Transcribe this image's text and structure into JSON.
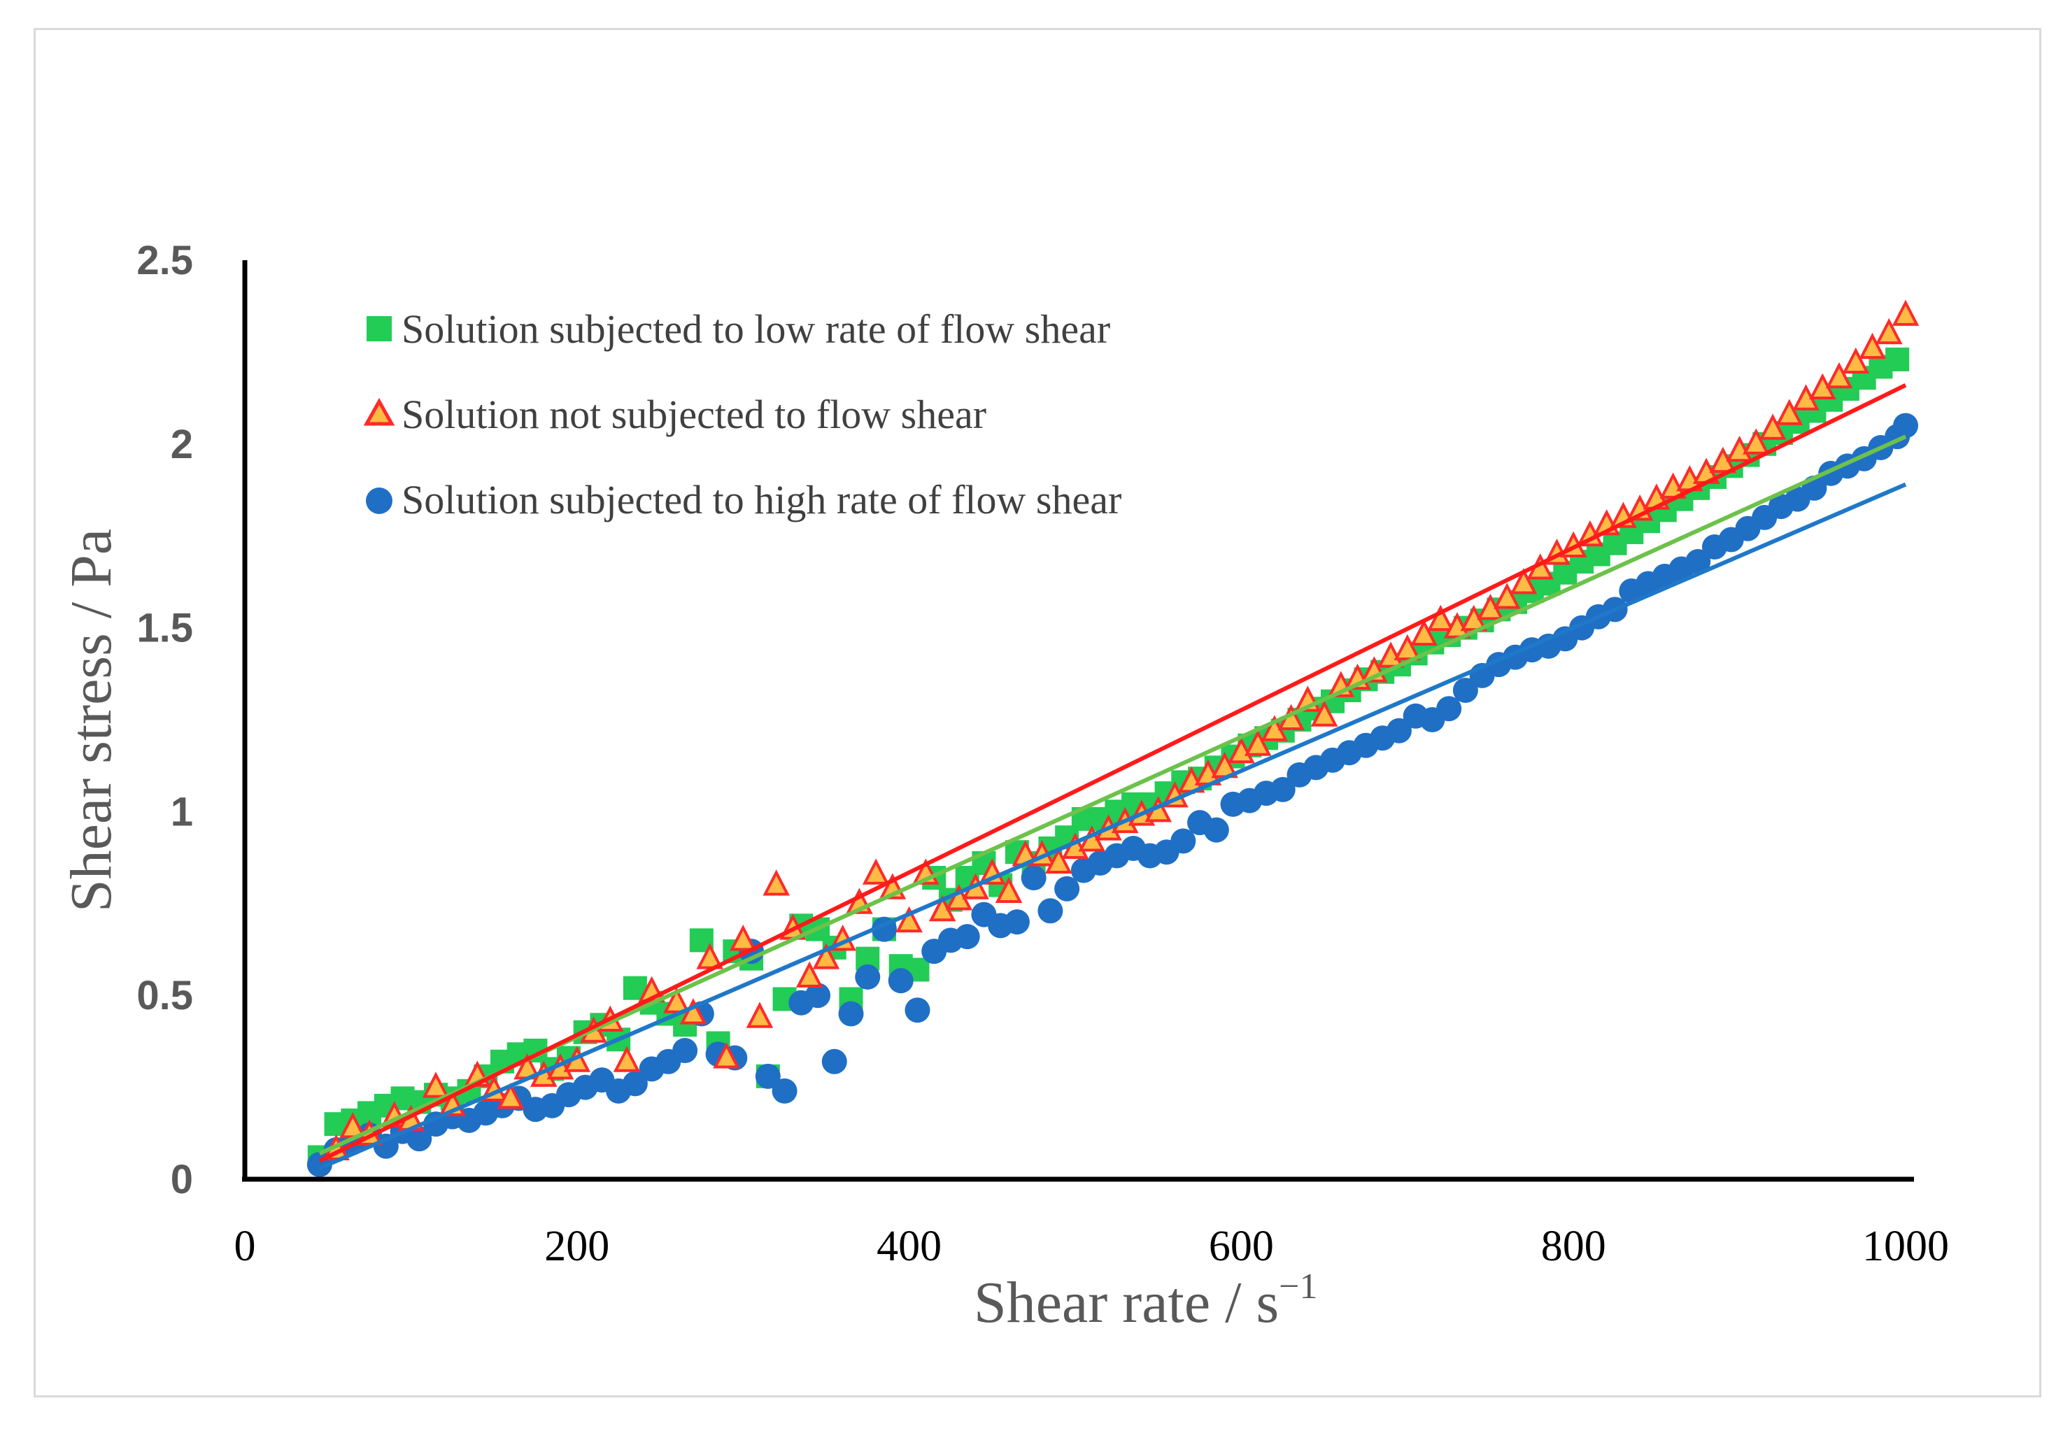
{
  "chart_data": {
    "type": "scatter",
    "title": "",
    "xlabel": "Shear rate / s",
    "xlabel_superscript": "−1",
    "ylabel": "Shear stress / Pa",
    "xlim": [
      0,
      1000
    ],
    "ylim": [
      0,
      2.5
    ],
    "x_ticks": [
      "0",
      "200",
      "400",
      "600",
      "800",
      "1000"
    ],
    "y_ticks": [
      "0",
      "0.5",
      "1",
      "1.5",
      "2",
      "2.5"
    ],
    "grid": false,
    "legend_position": "top-left",
    "series": [
      {
        "name": "Solution subjected to low rate of flow shear",
        "marker": "square",
        "color": "#22cc55",
        "x": [
          45,
          55,
          65,
          75,
          85,
          95,
          105,
          115,
          125,
          135,
          145,
          155,
          165,
          175,
          185,
          195,
          205,
          215,
          225,
          235,
          245,
          255,
          265,
          275,
          285,
          295,
          305,
          315,
          325,
          335,
          345,
          355,
          365,
          375,
          385,
          395,
          405,
          415,
          425,
          435,
          445,
          455,
          465,
          475,
          485,
          495,
          505,
          515,
          525,
          535,
          545,
          555,
          565,
          575,
          585,
          595,
          605,
          615,
          625,
          635,
          645,
          655,
          665,
          675,
          685,
          695,
          705,
          715,
          725,
          735,
          745,
          755,
          765,
          775,
          785,
          795,
          805,
          815,
          825,
          835,
          845,
          855,
          865,
          875,
          885,
          895,
          905,
          915,
          925,
          935,
          945,
          955,
          965,
          975,
          985,
          995
        ],
        "y": [
          0.06,
          0.15,
          0.16,
          0.18,
          0.2,
          0.22,
          0.21,
          0.23,
          0.22,
          0.24,
          0.28,
          0.32,
          0.34,
          0.35,
          0.3,
          0.33,
          0.4,
          0.42,
          0.38,
          0.52,
          0.48,
          0.45,
          0.42,
          0.65,
          0.37,
          0.62,
          0.6,
          0.28,
          0.49,
          0.69,
          0.68,
          0.63,
          0.49,
          0.6,
          0.68,
          0.58,
          0.57,
          0.82,
          0.76,
          0.82,
          0.86,
          0.8,
          0.89,
          0.86,
          0.9,
          0.93,
          0.98,
          0.98,
          1.0,
          1.02,
          1.02,
          1.05,
          1.08,
          1.09,
          1.12,
          1.15,
          1.18,
          1.2,
          1.22,
          1.25,
          1.28,
          1.3,
          1.33,
          1.36,
          1.38,
          1.4,
          1.43,
          1.46,
          1.48,
          1.5,
          1.52,
          1.55,
          1.57,
          1.6,
          1.62,
          1.65,
          1.68,
          1.7,
          1.73,
          1.76,
          1.79,
          1.82,
          1.85,
          1.88,
          1.91,
          1.94,
          1.97,
          2.0,
          2.03,
          2.06,
          2.09,
          2.12,
          2.15,
          2.18,
          2.21,
          2.23
        ],
        "trendline": {
          "x": [
            45,
            1000
          ],
          "y": [
            0.07,
            2.02
          ]
        }
      },
      {
        "name": "Solution not subjected to flow shear",
        "marker": "triangle",
        "color": "#ff2a2a",
        "fill": "#ffbb44",
        "x": [
          55,
          65,
          75,
          90,
          100,
          115,
          125,
          140,
          150,
          160,
          170,
          180,
          190,
          200,
          210,
          220,
          230,
          245,
          260,
          270,
          280,
          290,
          300,
          310,
          320,
          330,
          340,
          350,
          360,
          370,
          380,
          390,
          400,
          410,
          420,
          430,
          440,
          450,
          460,
          470,
          480,
          490,
          500,
          510,
          520,
          530,
          540,
          550,
          560,
          570,
          580,
          590,
          600,
          610,
          620,
          630,
          640,
          650,
          660,
          670,
          680,
          690,
          700,
          710,
          720,
          730,
          740,
          750,
          760,
          770,
          780,
          790,
          800,
          810,
          820,
          830,
          840,
          850,
          860,
          870,
          880,
          890,
          900,
          910,
          920,
          930,
          940,
          950,
          960,
          970,
          980,
          990,
          1000
        ],
        "y": [
          0.08,
          0.14,
          0.12,
          0.17,
          0.16,
          0.25,
          0.2,
          0.28,
          0.24,
          0.22,
          0.3,
          0.28,
          0.3,
          0.32,
          0.4,
          0.43,
          0.32,
          0.51,
          0.48,
          0.45,
          0.6,
          0.33,
          0.65,
          0.44,
          0.8,
          0.68,
          0.55,
          0.6,
          0.65,
          0.75,
          0.83,
          0.79,
          0.7,
          0.83,
          0.73,
          0.76,
          0.79,
          0.83,
          0.78,
          0.88,
          0.88,
          0.86,
          0.9,
          0.92,
          0.95,
          0.97,
          0.99,
          1.0,
          1.04,
          1.08,
          1.1,
          1.12,
          1.16,
          1.18,
          1.22,
          1.25,
          1.3,
          1.26,
          1.34,
          1.36,
          1.38,
          1.42,
          1.44,
          1.48,
          1.52,
          1.5,
          1.52,
          1.55,
          1.58,
          1.62,
          1.66,
          1.7,
          1.72,
          1.75,
          1.78,
          1.8,
          1.82,
          1.85,
          1.88,
          1.9,
          1.92,
          1.95,
          1.98,
          2.0,
          2.04,
          2.08,
          2.12,
          2.15,
          2.18,
          2.22,
          2.26,
          2.3,
          2.35
        ],
        "trendline": {
          "x": [
            45,
            1000
          ],
          "y": [
            0.05,
            2.16
          ]
        }
      },
      {
        "name": "Solution subjected to high rate of flow shear",
        "marker": "circle",
        "color": "#1f6fc5",
        "x": [
          45,
          55,
          65,
          75,
          85,
          95,
          105,
          115,
          125,
          135,
          145,
          155,
          165,
          175,
          185,
          195,
          205,
          215,
          225,
          235,
          245,
          255,
          265,
          275,
          285,
          295,
          305,
          315,
          325,
          335,
          345,
          355,
          365,
          375,
          385,
          395,
          405,
          415,
          425,
          435,
          445,
          455,
          465,
          475,
          485,
          495,
          505,
          515,
          525,
          535,
          545,
          555,
          565,
          575,
          585,
          595,
          605,
          615,
          625,
          635,
          645,
          655,
          665,
          675,
          685,
          695,
          705,
          715,
          725,
          735,
          745,
          755,
          765,
          775,
          785,
          795,
          805,
          815,
          825,
          835,
          845,
          855,
          865,
          875,
          885,
          895,
          905,
          915,
          925,
          935,
          945,
          955,
          965,
          975,
          985,
          995,
          1000
        ],
        "y": [
          0.04,
          0.08,
          0.1,
          0.12,
          0.09,
          0.13,
          0.11,
          0.15,
          0.17,
          0.16,
          0.18,
          0.2,
          0.22,
          0.19,
          0.2,
          0.23,
          0.25,
          0.27,
          0.24,
          0.26,
          0.3,
          0.32,
          0.35,
          0.45,
          0.34,
          0.33,
          0.62,
          0.28,
          0.24,
          0.48,
          0.5,
          0.32,
          0.45,
          0.55,
          0.68,
          0.54,
          0.46,
          0.62,
          0.65,
          0.66,
          0.72,
          0.69,
          0.7,
          0.82,
          0.73,
          0.79,
          0.84,
          0.86,
          0.88,
          0.9,
          0.88,
          0.89,
          0.92,
          0.97,
          0.95,
          1.02,
          1.03,
          1.05,
          1.06,
          1.1,
          1.12,
          1.14,
          1.16,
          1.18,
          1.2,
          1.22,
          1.26,
          1.25,
          1.28,
          1.33,
          1.37,
          1.4,
          1.42,
          1.44,
          1.45,
          1.47,
          1.5,
          1.53,
          1.55,
          1.6,
          1.62,
          1.64,
          1.66,
          1.68,
          1.72,
          1.74,
          1.77,
          1.8,
          1.83,
          1.85,
          1.88,
          1.92,
          1.94,
          1.96,
          1.99,
          2.02,
          2.05
        ],
        "trendline": {
          "x": [
            45,
            1000
          ],
          "y": [
            0.03,
            1.89
          ]
        }
      }
    ]
  }
}
